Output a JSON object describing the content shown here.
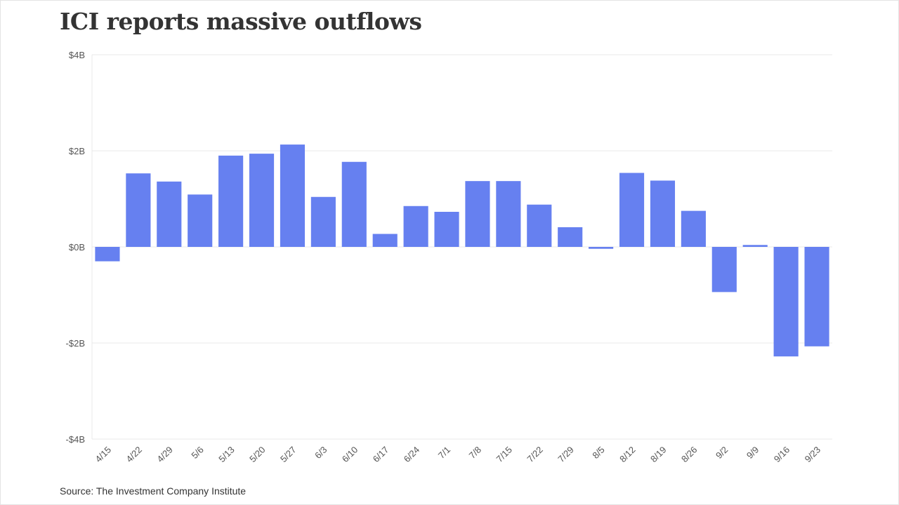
{
  "chart_data": {
    "type": "bar",
    "title": "ICI reports massive outflows",
    "source": "Source: The Investment Company Institute",
    "xlabel": "",
    "ylabel": "",
    "ylim": [
      -4,
      4
    ],
    "yticks": [
      4,
      2,
      0,
      -2,
      -4
    ],
    "ytick_labels": [
      "$4B",
      "$2B",
      "$0B",
      "-$2B",
      "-$4B"
    ],
    "grid": true,
    "bar_color": "#6680f0",
    "categories": [
      "4/15",
      "4/22",
      "4/29",
      "5/6",
      "5/13",
      "5/20",
      "5/27",
      "6/3",
      "6/10",
      "6/17",
      "6/24",
      "7/1",
      "7/8",
      "7/15",
      "7/22",
      "7/29",
      "8/5",
      "8/12",
      "8/19",
      "8/26",
      "9/2",
      "9/9",
      "9/16",
      "9/23"
    ],
    "values": [
      -0.3,
      1.53,
      1.36,
      1.09,
      1.9,
      1.94,
      2.13,
      1.04,
      1.77,
      0.27,
      0.85,
      0.73,
      1.37,
      1.37,
      0.88,
      0.41,
      -0.04,
      1.54,
      1.38,
      0.75,
      -0.94,
      0.04,
      -2.28,
      -2.07
    ],
    "units": "$B"
  }
}
